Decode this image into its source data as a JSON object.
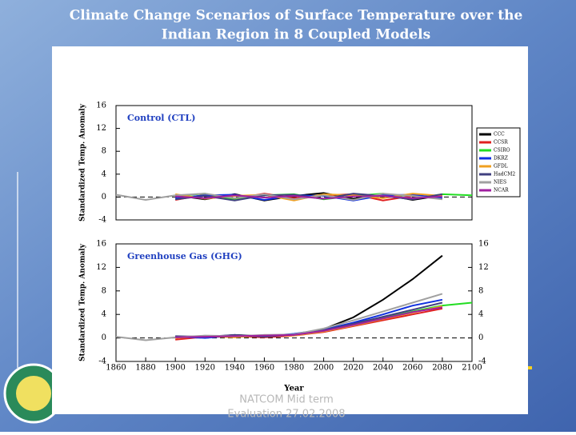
{
  "slide_title": [
    "Climate Change Scenarios of Surface Temperature over the",
    "Indian Region in 8 Coupled Models"
  ],
  "footer": [
    "NATCOM Mid term",
    "Evaluation 27.02.2008"
  ],
  "chart_data": [
    {
      "type": "line",
      "title": "Control (CTL)",
      "ylabel": "Standardized Temp. Anomaly",
      "x": [
        1860,
        1880,
        1900,
        1920,
        1940,
        1960,
        1980,
        2000,
        2020,
        2040,
        2060,
        2080,
        2100
      ],
      "xlim": [
        1860,
        2100
      ],
      "ylim": [
        -4,
        16
      ],
      "yticks": [
        16,
        12,
        8,
        4,
        0,
        -4
      ],
      "legend": "right",
      "series": [
        {
          "name": "CCC",
          "color": "#000000",
          "values": [
            null,
            null,
            0.3,
            -0.4,
            0.5,
            -0.6,
            0.2,
            0.7,
            -0.3,
            0.4,
            -0.5,
            0.3,
            null
          ]
        },
        {
          "name": "CCSR",
          "color": "#e02020",
          "values": [
            null,
            null,
            -0.5,
            0.4,
            -0.3,
            0.6,
            -0.2,
            0.3,
            0.5,
            -0.6,
            0.2,
            -0.3,
            null
          ]
        },
        {
          "name": "CSIRO",
          "color": "#22dd22",
          "values": [
            null,
            null,
            0.2,
            0.6,
            -0.5,
            0.3,
            0.5,
            -0.4,
            0.2,
            0.6,
            -0.3,
            0.5,
            0.3
          ]
        },
        {
          "name": "DKRZ",
          "color": "#1030e0",
          "values": [
            null,
            null,
            -0.2,
            0.3,
            0.4,
            -0.5,
            0.3,
            0.2,
            -0.6,
            0.3,
            0.4,
            -0.2,
            null
          ]
        },
        {
          "name": "GFDL",
          "color": "#f0a020",
          "values": [
            null,
            null,
            0.5,
            -0.3,
            0.2,
            0.4,
            -0.6,
            0.5,
            0.3,
            -0.2,
            0.6,
            0.2,
            null
          ]
        },
        {
          "name": "HadCM2",
          "color": "#404080",
          "values": [
            null,
            null,
            -0.4,
            0.2,
            -0.6,
            0.3,
            0.4,
            -0.3,
            0.6,
            0.2,
            -0.4,
            0.5,
            null
          ]
        },
        {
          "name": "NIES",
          "color": "#a0a0a0",
          "values": [
            0.4,
            -0.5,
            0.3,
            0.6,
            -0.2,
            0.5,
            -0.4,
            0.3,
            -0.5,
            0.6,
            0.2,
            -0.4,
            null
          ]
        },
        {
          "name": "NCAR",
          "color": "#a020a0",
          "values": [
            null,
            null,
            0.1,
            -0.2,
            0.3,
            -0.1,
            0.2,
            -0.3,
            0.1,
            0.2,
            -0.2,
            0.1,
            null
          ]
        }
      ]
    },
    {
      "type": "line",
      "title": "Greenhouse Gas (GHG)",
      "ylabel": "Standardized Temp. Anomaly",
      "xlabel": "Year",
      "x": [
        1860,
        1880,
        1900,
        1920,
        1940,
        1960,
        1980,
        2000,
        2020,
        2040,
        2060,
        2080,
        2100
      ],
      "xlim": [
        1860,
        2100
      ],
      "xticks": [
        1860,
        1880,
        1900,
        1920,
        1940,
        1960,
        1980,
        2000,
        2020,
        2040,
        2060,
        2080,
        2100
      ],
      "ylim": [
        -4,
        16
      ],
      "yticks": [
        16,
        12,
        8,
        4,
        0,
        -4
      ],
      "y2lim": [
        -4,
        16
      ],
      "y2ticks": [
        16,
        12,
        8,
        4,
        0,
        -4
      ],
      "series": [
        {
          "color": "#000000",
          "values": [
            null,
            null,
            0.2,
            0.1,
            0.5,
            0.3,
            0.6,
            1.5,
            3.5,
            6.5,
            10,
            14,
            null
          ]
        },
        {
          "color": "#e02020",
          "values": [
            null,
            null,
            -0.3,
            0.2,
            0.3,
            0.1,
            0.4,
            1,
            2,
            3,
            4,
            5,
            null
          ]
        },
        {
          "color": "#22dd22",
          "values": [
            null,
            null,
            0.1,
            0.3,
            0.2,
            0.4,
            0.5,
            1.2,
            2.3,
            3.4,
            4.5,
            5.5,
            6
          ]
        },
        {
          "color": "#1030e0",
          "values": [
            null,
            null,
            0.2,
            0,
            0.4,
            0.3,
            0.7,
            1.4,
            2.6,
            4,
            5.5,
            6.5,
            null
          ]
        },
        {
          "color": "#f0a020",
          "values": [
            null,
            null,
            0,
            0.3,
            0.1,
            0.5,
            0.4,
            1.1,
            2.1,
            3.2,
            4.3,
            5.4,
            null
          ]
        },
        {
          "color": "#404080",
          "values": [
            null,
            null,
            0.3,
            0.2,
            0.5,
            0.2,
            0.6,
            1.3,
            2.4,
            3.6,
            4.8,
            6,
            null
          ]
        },
        {
          "color": "#a0a0a0",
          "values": [
            0.2,
            -0.4,
            0.1,
            0.4,
            0.3,
            0.5,
            0.6,
            1.6,
            3,
            4.5,
            6,
            7.5,
            null
          ]
        },
        {
          "color": "#a020a0",
          "values": [
            null,
            null,
            0.1,
            0.2,
            0.3,
            0.4,
            0.5,
            1.2,
            2.2,
            3.3,
            4.4,
            5.2,
            null
          ]
        }
      ]
    }
  ]
}
